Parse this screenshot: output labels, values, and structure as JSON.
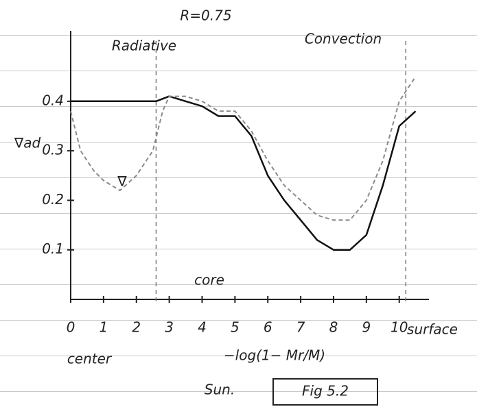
{
  "chart_data": {
    "type": "line",
    "title": "R=0.75",
    "annotations": [
      "Radiative",
      "Convection",
      "core",
      "center",
      "surface",
      "Sun.",
      "Fig 5.2"
    ],
    "x_label": "−log(1− Mr/M)",
    "xlim": [
      0,
      10.8
    ],
    "ylim": [
      0,
      0.48
    ],
    "xticks": [
      0,
      1,
      2,
      3,
      4,
      5,
      6,
      7,
      8,
      9,
      10
    ],
    "yticks": [
      0.1,
      0.2,
      0.3,
      0.4
    ],
    "boundaries": [
      2.6,
      10.2
    ],
    "series": [
      {
        "name": "∇ad",
        "color": "#111111",
        "style": "solid",
        "x": [
          0,
          1,
          2,
          2.6,
          3,
          3.5,
          4,
          4.5,
          5,
          5.5,
          6,
          6.5,
          7,
          7.5,
          8,
          8.5,
          9,
          9.5,
          10,
          10.5
        ],
        "values": [
          0.4,
          0.4,
          0.4,
          0.4,
          0.41,
          0.4,
          0.39,
          0.37,
          0.37,
          0.33,
          0.25,
          0.2,
          0.16,
          0.12,
          0.1,
          0.1,
          0.13,
          0.23,
          0.35,
          0.38
        ]
      },
      {
        "name": "∇",
        "color": "#8a8a8a",
        "style": "dashed",
        "x": [
          0,
          0.3,
          0.7,
          1,
          1.5,
          2,
          2.5,
          2.8,
          3,
          3.5,
          4,
          4.5,
          5,
          5.5,
          6,
          6.5,
          7,
          7.5,
          8,
          8.5,
          9,
          9.5,
          10,
          10.5
        ],
        "values": [
          0.38,
          0.3,
          0.26,
          0.24,
          0.22,
          0.25,
          0.3,
          0.38,
          0.41,
          0.41,
          0.4,
          0.38,
          0.38,
          0.34,
          0.28,
          0.23,
          0.2,
          0.17,
          0.16,
          0.16,
          0.2,
          0.28,
          0.4,
          0.45
        ]
      }
    ]
  }
}
